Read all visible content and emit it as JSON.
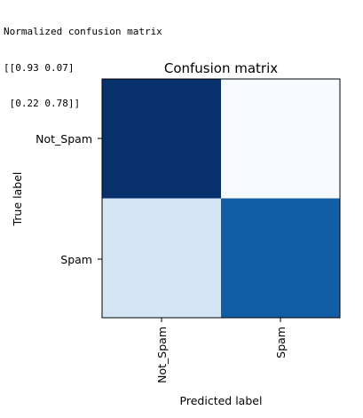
{
  "console_output": {
    "lines": [
      "Normalized confusion matrix",
      "[[0.93 0.07]",
      " [0.22 0.78]]"
    ]
  },
  "chart_data": {
    "type": "heatmap",
    "title": "Confusion matrix",
    "xlabel": "Predicted label",
    "ylabel": "True label",
    "x_categories": [
      "Not_Spam",
      "Spam"
    ],
    "y_categories": [
      "Not_Spam",
      "Spam"
    ],
    "values": [
      [
        0.93,
        0.07
      ],
      [
        0.22,
        0.78
      ]
    ],
    "colormap": "Blues",
    "colors": {
      "low": "#f7fbff",
      "high": "#08306b"
    },
    "grid": false,
    "legend": "none"
  }
}
